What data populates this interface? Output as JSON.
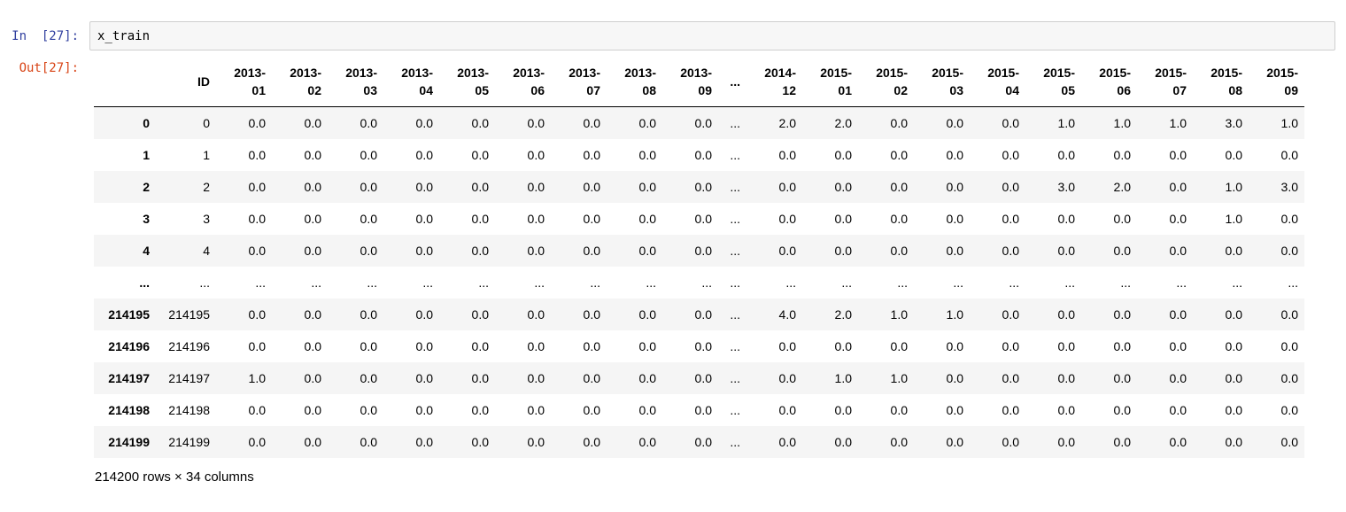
{
  "cell": {
    "in_prompt": "In  [27]:",
    "out_prompt": "Out[27]:",
    "input_code": "x_train"
  },
  "table": {
    "index_header": "",
    "columns": [
      "ID",
      "2013-01",
      "2013-02",
      "2013-03",
      "2013-04",
      "2013-05",
      "2013-06",
      "2013-07",
      "2013-08",
      "2013-09",
      "...",
      "2014-12",
      "2015-01",
      "2015-02",
      "2015-03",
      "2015-04",
      "2015-05",
      "2015-06",
      "2015-07",
      "2015-08",
      "2015-09"
    ],
    "rows": [
      {
        "index": "0",
        "cells": [
          "0",
          "0.0",
          "0.0",
          "0.0",
          "0.0",
          "0.0",
          "0.0",
          "0.0",
          "0.0",
          "0.0",
          "...",
          "2.0",
          "2.0",
          "0.0",
          "0.0",
          "0.0",
          "1.0",
          "1.0",
          "1.0",
          "3.0",
          "1.0"
        ]
      },
      {
        "index": "1",
        "cells": [
          "1",
          "0.0",
          "0.0",
          "0.0",
          "0.0",
          "0.0",
          "0.0",
          "0.0",
          "0.0",
          "0.0",
          "...",
          "0.0",
          "0.0",
          "0.0",
          "0.0",
          "0.0",
          "0.0",
          "0.0",
          "0.0",
          "0.0",
          "0.0"
        ]
      },
      {
        "index": "2",
        "cells": [
          "2",
          "0.0",
          "0.0",
          "0.0",
          "0.0",
          "0.0",
          "0.0",
          "0.0",
          "0.0",
          "0.0",
          "...",
          "0.0",
          "0.0",
          "0.0",
          "0.0",
          "0.0",
          "3.0",
          "2.0",
          "0.0",
          "1.0",
          "3.0"
        ]
      },
      {
        "index": "3",
        "cells": [
          "3",
          "0.0",
          "0.0",
          "0.0",
          "0.0",
          "0.0",
          "0.0",
          "0.0",
          "0.0",
          "0.0",
          "...",
          "0.0",
          "0.0",
          "0.0",
          "0.0",
          "0.0",
          "0.0",
          "0.0",
          "0.0",
          "1.0",
          "0.0"
        ]
      },
      {
        "index": "4",
        "cells": [
          "4",
          "0.0",
          "0.0",
          "0.0",
          "0.0",
          "0.0",
          "0.0",
          "0.0",
          "0.0",
          "0.0",
          "...",
          "0.0",
          "0.0",
          "0.0",
          "0.0",
          "0.0",
          "0.0",
          "0.0",
          "0.0",
          "0.0",
          "0.0"
        ]
      },
      {
        "index": "...",
        "cells": [
          "...",
          "...",
          "...",
          "...",
          "...",
          "...",
          "...",
          "...",
          "...",
          "...",
          "...",
          "...",
          "...",
          "...",
          "...",
          "...",
          "...",
          "...",
          "...",
          "...",
          "..."
        ]
      },
      {
        "index": "214195",
        "cells": [
          "214195",
          "0.0",
          "0.0",
          "0.0",
          "0.0",
          "0.0",
          "0.0",
          "0.0",
          "0.0",
          "0.0",
          "...",
          "4.0",
          "2.0",
          "1.0",
          "1.0",
          "0.0",
          "0.0",
          "0.0",
          "0.0",
          "0.0",
          "0.0"
        ]
      },
      {
        "index": "214196",
        "cells": [
          "214196",
          "0.0",
          "0.0",
          "0.0",
          "0.0",
          "0.0",
          "0.0",
          "0.0",
          "0.0",
          "0.0",
          "...",
          "0.0",
          "0.0",
          "0.0",
          "0.0",
          "0.0",
          "0.0",
          "0.0",
          "0.0",
          "0.0",
          "0.0"
        ]
      },
      {
        "index": "214197",
        "cells": [
          "214197",
          "1.0",
          "0.0",
          "0.0",
          "0.0",
          "0.0",
          "0.0",
          "0.0",
          "0.0",
          "0.0",
          "...",
          "0.0",
          "1.0",
          "1.0",
          "0.0",
          "0.0",
          "0.0",
          "0.0",
          "0.0",
          "0.0",
          "0.0"
        ]
      },
      {
        "index": "214198",
        "cells": [
          "214198",
          "0.0",
          "0.0",
          "0.0",
          "0.0",
          "0.0",
          "0.0",
          "0.0",
          "0.0",
          "0.0",
          "...",
          "0.0",
          "0.0",
          "0.0",
          "0.0",
          "0.0",
          "0.0",
          "0.0",
          "0.0",
          "0.0",
          "0.0"
        ]
      },
      {
        "index": "214199",
        "cells": [
          "214199",
          "0.0",
          "0.0",
          "0.0",
          "0.0",
          "0.0",
          "0.0",
          "0.0",
          "0.0",
          "0.0",
          "...",
          "0.0",
          "0.0",
          "0.0",
          "0.0",
          "0.0",
          "0.0",
          "0.0",
          "0.0",
          "0.0",
          "0.0"
        ]
      }
    ],
    "summary": "214200 rows × 34 columns"
  },
  "layout_widths": {
    "index_col": 70,
    "id_col": 68,
    "month_col": 63,
    "dots_col": 32
  },
  "colors": {
    "in_prompt": "#303F9F",
    "out_prompt": "#D84315",
    "input_bg": "#f7f7f7",
    "input_border": "#cfcfcf",
    "row_stripe": "#f5f5f5",
    "header_border": "#000000"
  }
}
